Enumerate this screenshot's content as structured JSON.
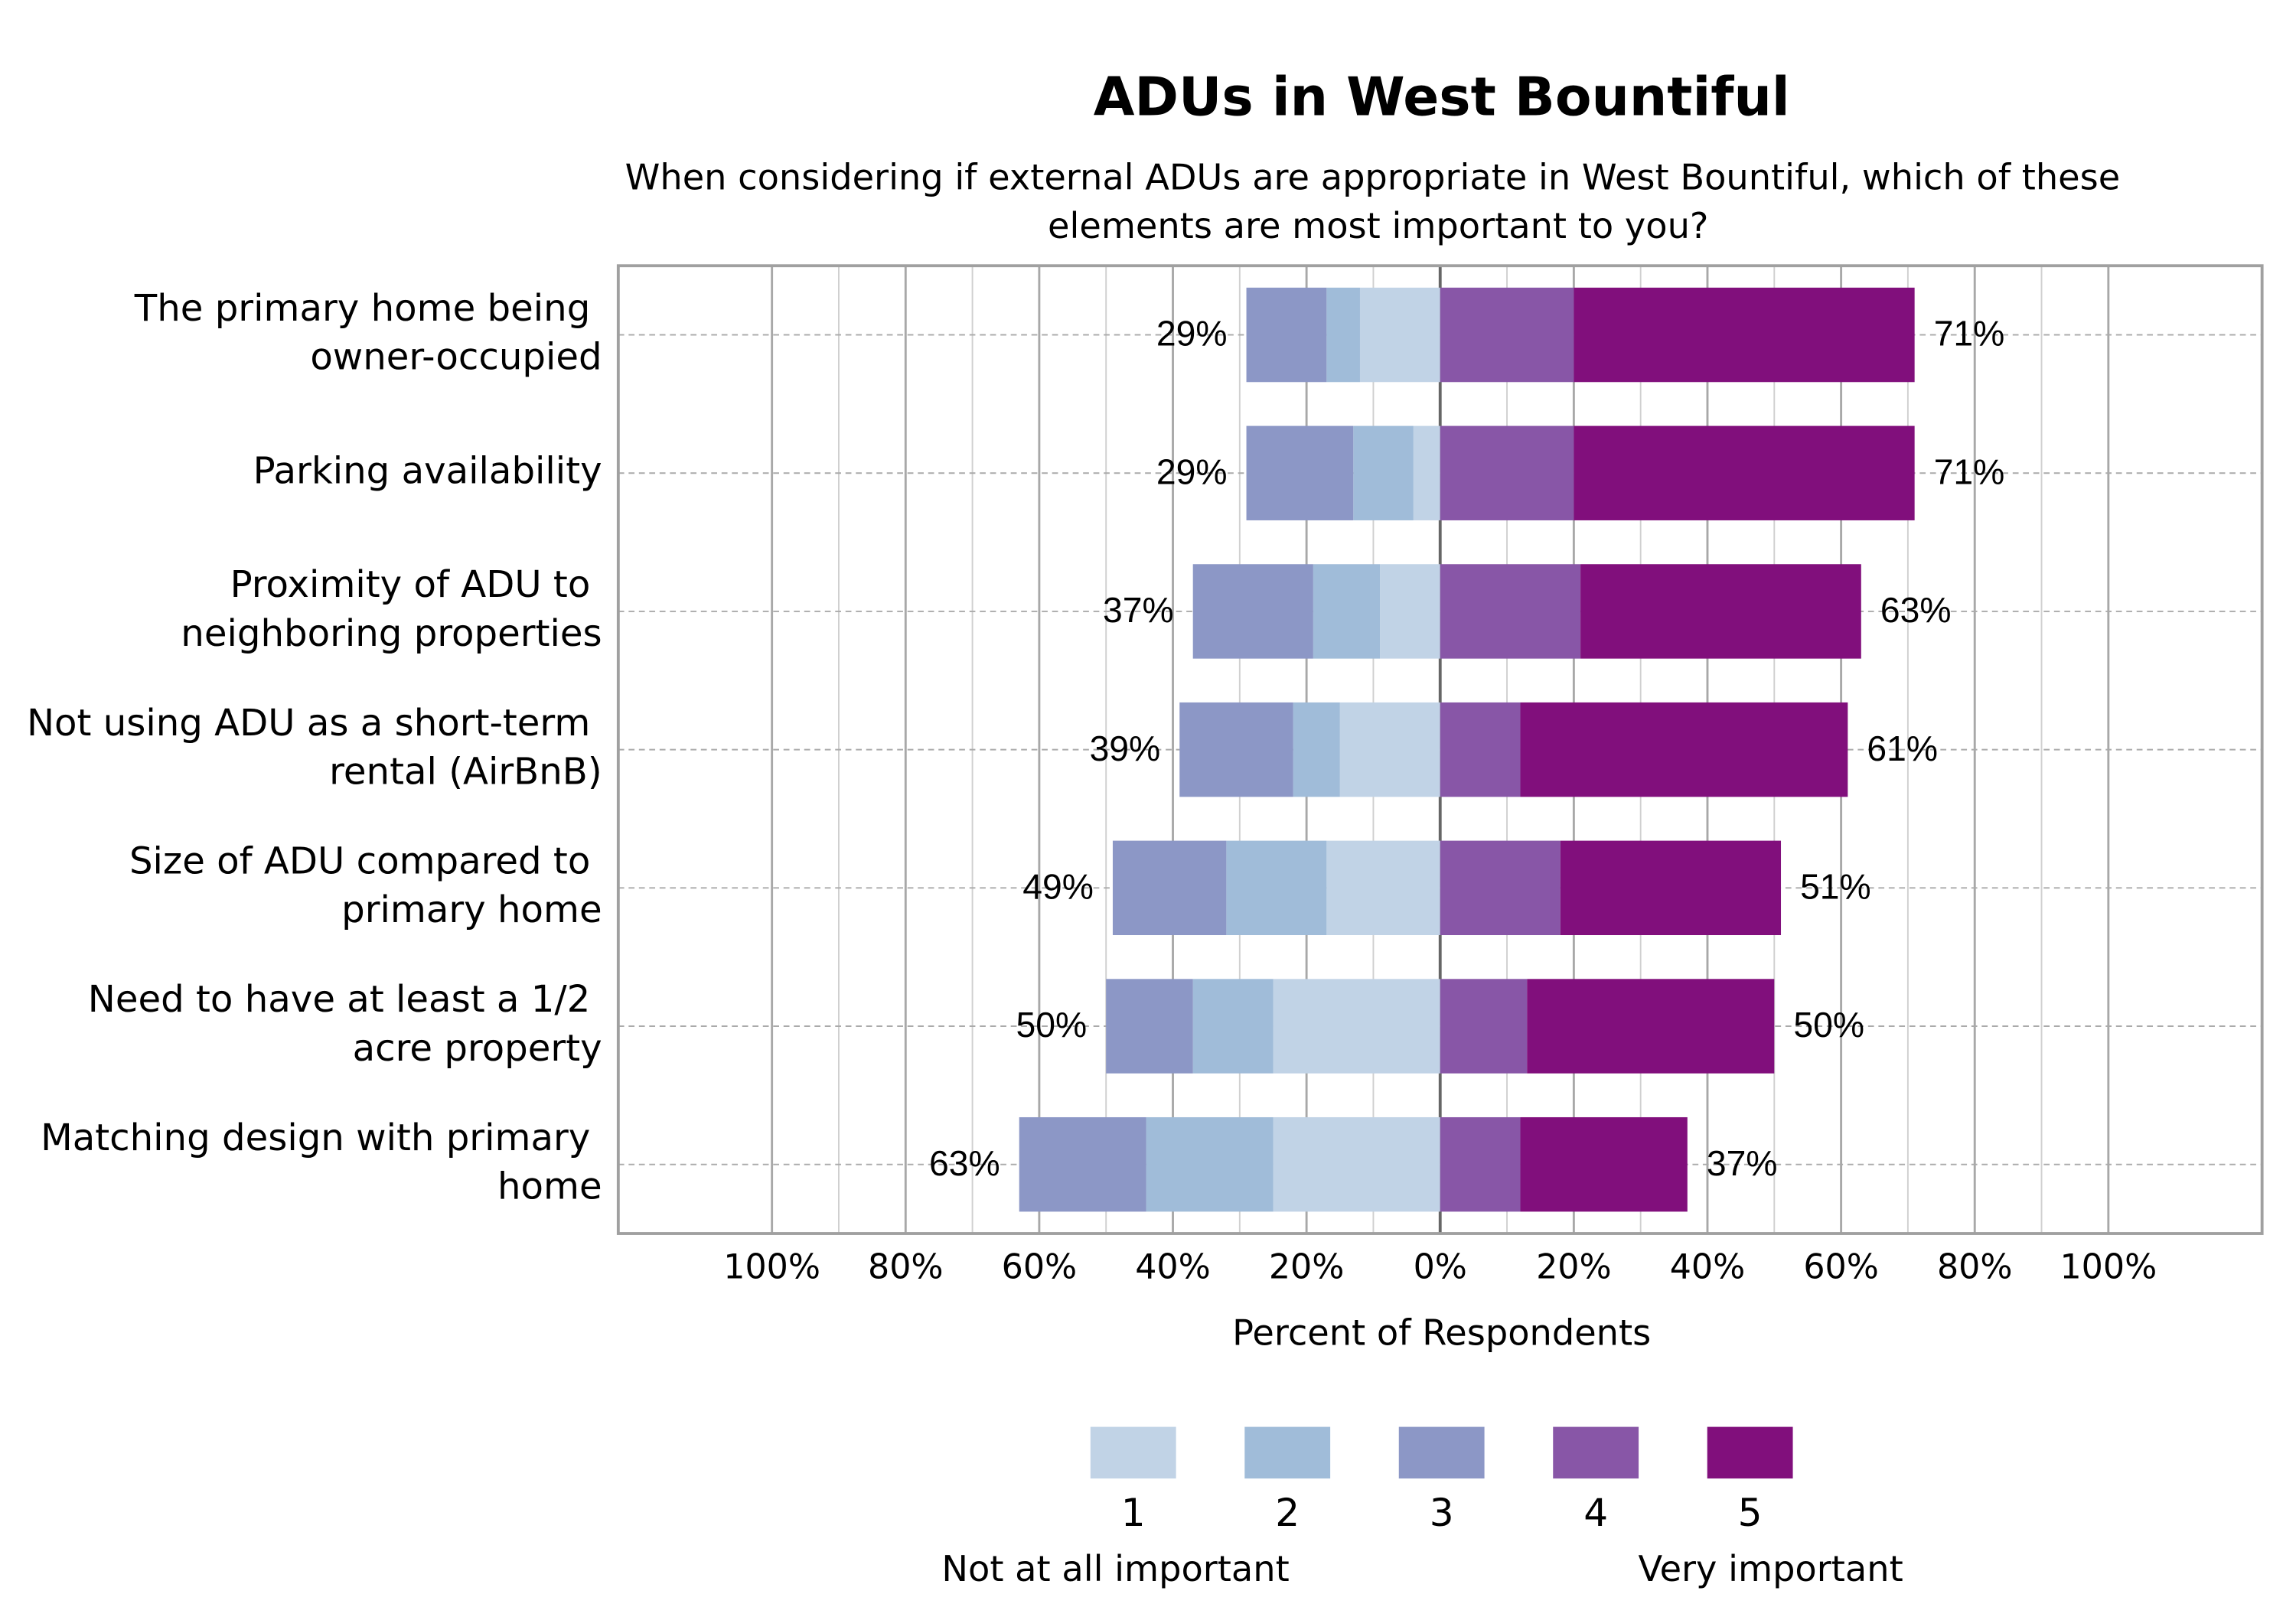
{
  "chart_data": {
    "type": "diverging_bar",
    "title": "ADUs in West Bountiful",
    "subtitle": "When considering if external ADUs are appropriate in West Bountiful, which of these elements are most important to you?",
    "x_label": "Percent of Respondents",
    "categories": [
      "The primary home being owner-occupied",
      "Parking availability",
      "Proximity of ADU to neighboring properties",
      "Not using ADU as a short-term rental (AirBnB)",
      "Size of ADU compared to primary home",
      "Need to have at least a 1/2 acre property",
      "Matching design with primary home"
    ],
    "series": [
      {
        "name": "1",
        "color": "#c1d3e6",
        "side": "left",
        "values": [
          12,
          4,
          9,
          15,
          17,
          25,
          25
        ]
      },
      {
        "name": "2",
        "color": "#a0bcd9",
        "side": "left",
        "values": [
          5,
          9,
          10,
          7,
          15,
          12,
          19
        ]
      },
      {
        "name": "3",
        "color": "#8c97c6",
        "side": "left",
        "values": [
          12,
          16,
          18,
          17,
          17,
          13,
          19
        ]
      },
      {
        "name": "4",
        "color": "#8856a7",
        "side": "right",
        "values": [
          20,
          20,
          21,
          12,
          18,
          13,
          12
        ]
      },
      {
        "name": "5",
        "color": "#810f7c",
        "side": "right",
        "values": [
          51,
          51,
          42,
          49,
          33,
          37,
          25
        ]
      }
    ],
    "left_totals": {
      "values": [
        29,
        29,
        37,
        39,
        49,
        50,
        63
      ],
      "value_labels": [
        "29%",
        "29%",
        "37%",
        "39%",
        "49%",
        "50%",
        "63%"
      ]
    },
    "right_totals": {
      "values": [
        71,
        71,
        63,
        61,
        51,
        50,
        37
      ],
      "value_labels": [
        "71%",
        "71%",
        "63%",
        "61%",
        "51%",
        "50%",
        "37%"
      ]
    },
    "xlim": [
      -123,
      123
    ],
    "xticks": [
      {
        "value": -100,
        "label": "100%"
      },
      {
        "value": -80,
        "label": "80%"
      },
      {
        "value": -60,
        "label": "60%"
      },
      {
        "value": -40,
        "label": "40%"
      },
      {
        "value": -20,
        "label": "20%"
      },
      {
        "value": 0,
        "label": "0%"
      },
      {
        "value": 20,
        "label": "20%"
      },
      {
        "value": 40,
        "label": "40%"
      },
      {
        "value": 60,
        "label": "60%"
      },
      {
        "value": 80,
        "label": "80%"
      },
      {
        "value": 100,
        "label": "100%"
      }
    ],
    "minor_xticks": [
      -90,
      -70,
      -50,
      -30,
      -10,
      10,
      30,
      50,
      70,
      90
    ],
    "grid": true,
    "legend_low_label": "Not at all important",
    "legend_high_label": "Very important"
  }
}
